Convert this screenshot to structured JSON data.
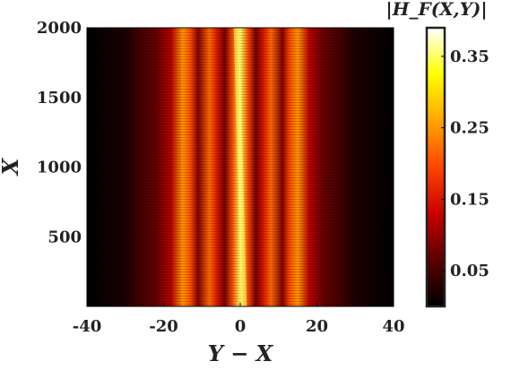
{
  "chart_data": {
    "type": "heatmap",
    "xlabel": "Y − X",
    "ylabel": "X",
    "colorbar_label": "|H_F(X,Y)|",
    "x_ticks": [
      -40,
      -20,
      0,
      20,
      40
    ],
    "y_ticks": [
      500,
      1000,
      1500,
      2000
    ],
    "xlim": [
      -40,
      40
    ],
    "ylim": [
      1,
      2000
    ],
    "colorbar_ticks": [
      0.05,
      0.15,
      0.25,
      0.35
    ],
    "colorbar_range": [
      0,
      0.39
    ],
    "colormap": "hot",
    "band_profile": [
      {
        "x": -40,
        "v": 0.0
      },
      {
        "x": -35,
        "v": 0.01
      },
      {
        "x": -30,
        "v": 0.02
      },
      {
        "x": -26,
        "v": 0.05
      },
      {
        "x": -22,
        "v": 0.07
      },
      {
        "x": -18,
        "v": 0.12
      },
      {
        "x": -15,
        "v": 0.25
      },
      {
        "x": -13,
        "v": 0.2
      },
      {
        "x": -11,
        "v": 0.09
      },
      {
        "x": -8,
        "v": 0.22
      },
      {
        "x": -6,
        "v": 0.15
      },
      {
        "x": -4,
        "v": 0.08
      },
      {
        "x": -2,
        "v": 0.2
      },
      {
        "x": 0,
        "v": 0.35
      },
      {
        "x": 2,
        "v": 0.2
      },
      {
        "x": 4,
        "v": 0.08
      },
      {
        "x": 6,
        "v": 0.15
      },
      {
        "x": 8,
        "v": 0.22
      },
      {
        "x": 11,
        "v": 0.09
      },
      {
        "x": 13,
        "v": 0.2
      },
      {
        "x": 15,
        "v": 0.25
      },
      {
        "x": 18,
        "v": 0.12
      },
      {
        "x": 22,
        "v": 0.07
      },
      {
        "x": 26,
        "v": 0.05
      },
      {
        "x": 30,
        "v": 0.02
      },
      {
        "x": 35,
        "v": 0.01
      },
      {
        "x": 40,
        "v": 0.0
      }
    ],
    "ridge": {
      "x_at_ymin": 1,
      "x_at_ymax": -1
    }
  },
  "colors": {
    "colormap_stops": [
      "#000000",
      "#5a0000",
      "#c80000",
      "#ff4500",
      "#ffa500",
      "#ffff00",
      "#ffffff"
    ]
  }
}
